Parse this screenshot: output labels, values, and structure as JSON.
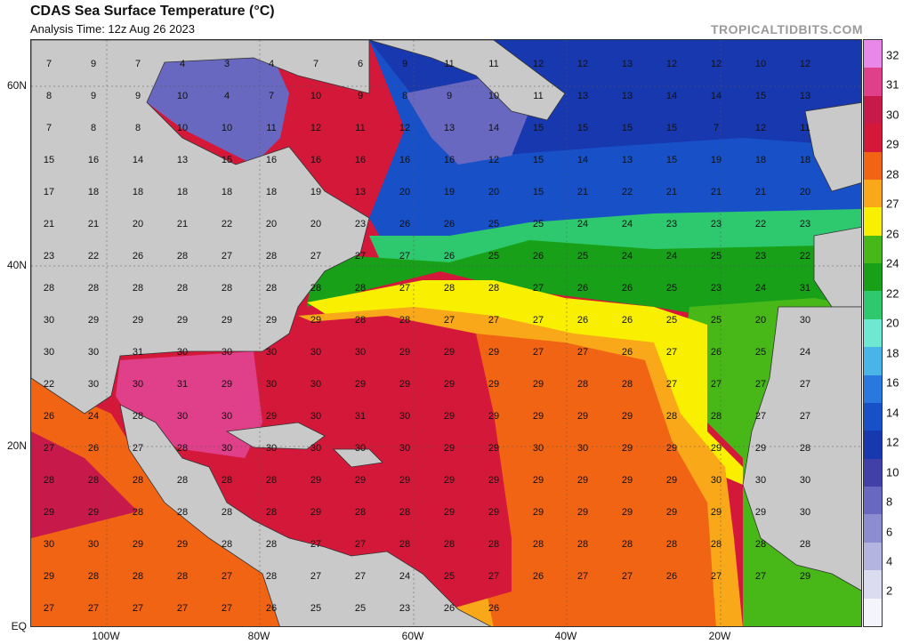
{
  "title": "CDAS Sea Surface Temperature (°C)",
  "subtitle": "Analysis Time: 12z Aug 26 2023",
  "brand": "TROPICALTIDBITS.COM",
  "lat_labels": [
    "60N",
    "40N",
    "20N",
    "EQ"
  ],
  "lon_labels": [
    "100W",
    "80W",
    "60W",
    "40W",
    "20W"
  ],
  "colorbar": {
    "labels": [
      "32",
      "31",
      "30",
      "29",
      "28",
      "27",
      "26",
      "24",
      "22",
      "20",
      "18",
      "16",
      "14",
      "12",
      "10",
      "8",
      "6",
      "4",
      "2"
    ],
    "colors": [
      "#e888e8",
      "#e0408a",
      "#c81a4a",
      "#d4183a",
      "#f06414",
      "#f8a818",
      "#f8f000",
      "#48b818",
      "#18a018",
      "#2ec86e",
      "#6ee8d0",
      "#48b4e8",
      "#2878e0",
      "#1850c8",
      "#1838b0",
      "#4040a8",
      "#6868c0",
      "#8c8cd0",
      "#b4b4e0",
      "#dcdcf0",
      "#f4f4fc"
    ]
  },
  "sst_values": [
    "7",
    "9",
    "7",
    "4",
    "3",
    "4",
    "7",
    "6",
    "9",
    "11",
    "11",
    "12",
    "12",
    "13",
    "12",
    "12",
    "10",
    "12",
    "8",
    "9",
    "9",
    "10",
    "4",
    "7",
    "10",
    "9",
    "8",
    "9",
    "10",
    "11",
    "13",
    "13",
    "14",
    "14",
    "15",
    "13",
    "7",
    "8",
    "8",
    "10",
    "10",
    "11",
    "12",
    "11",
    "12",
    "13",
    "14",
    "15",
    "15",
    "15",
    "15",
    "7",
    "12",
    "11",
    "15",
    "16",
    "14",
    "13",
    "15",
    "16",
    "16",
    "16",
    "16",
    "16",
    "12",
    "15",
    "14",
    "13",
    "15",
    "19",
    "18",
    "18",
    "17",
    "18",
    "18",
    "18",
    "18",
    "18",
    "19",
    "13",
    "20",
    "19",
    "20",
    "15",
    "21",
    "22",
    "21",
    "21",
    "21",
    "20",
    "21",
    "21",
    "20",
    "21",
    "22",
    "20",
    "20",
    "23",
    "26",
    "26",
    "25",
    "25",
    "24",
    "24",
    "23",
    "23",
    "22",
    "23",
    "23",
    "22",
    "26",
    "28",
    "27",
    "28",
    "27",
    "27",
    "27",
    "26",
    "25",
    "26",
    "25",
    "24",
    "24",
    "25",
    "23",
    "22",
    "28",
    "28",
    "28",
    "28",
    "28",
    "28",
    "28",
    "28",
    "27",
    "28",
    "28",
    "27",
    "26",
    "26",
    "25",
    "23",
    "24",
    "31",
    "30",
    "29",
    "29",
    "29",
    "29",
    "29",
    "29",
    "28",
    "28",
    "27",
    "27",
    "27",
    "26",
    "26",
    "25",
    "25",
    "20",
    "30",
    "30",
    "30",
    "31",
    "30",
    "30",
    "30",
    "30",
    "30",
    "29",
    "29",
    "29",
    "27",
    "27",
    "26",
    "27",
    "26",
    "25",
    "24",
    "22",
    "30",
    "30",
    "31",
    "29",
    "30",
    "30",
    "29",
    "29",
    "29",
    "29",
    "29",
    "28",
    "28",
    "27",
    "27",
    "27",
    "27",
    "26",
    "24",
    "28",
    "30",
    "30",
    "29",
    "30",
    "31",
    "30",
    "29",
    "29",
    "29",
    "29",
    "29",
    "28",
    "28",
    "27",
    "27",
    "27",
    "26",
    "27",
    "28",
    "30",
    "30",
    "30",
    "30",
    "30",
    "29",
    "29",
    "30",
    "30",
    "29",
    "29",
    "29",
    "29",
    "28",
    "28",
    "28",
    "28",
    "28",
    "28",
    "28",
    "29",
    "29",
    "29",
    "29",
    "29",
    "29",
    "29",
    "29",
    "29",
    "30",
    "30",
    "30",
    "29",
    "29",
    "28",
    "28",
    "28",
    "28",
    "29",
    "28",
    "28",
    "29",
    "29",
    "29",
    "29",
    "29",
    "29",
    "29",
    "29",
    "30",
    "30",
    "30",
    "29",
    "29",
    "28",
    "28",
    "27",
    "27",
    "28",
    "28",
    "28",
    "28",
    "28",
    "28",
    "28",
    "28",
    "28",
    "28",
    "29",
    "28",
    "28",
    "28",
    "27",
    "28",
    "27",
    "27",
    "24",
    "25",
    "27",
    "26",
    "27",
    "27",
    "26",
    "27",
    "27",
    "29",
    "27",
    "27",
    "27",
    "27",
    "27",
    "26",
    "25",
    "25",
    "23",
    "26",
    "26"
  ],
  "colors": {
    "land": "#c9c9c9",
    "border": "#333333"
  }
}
